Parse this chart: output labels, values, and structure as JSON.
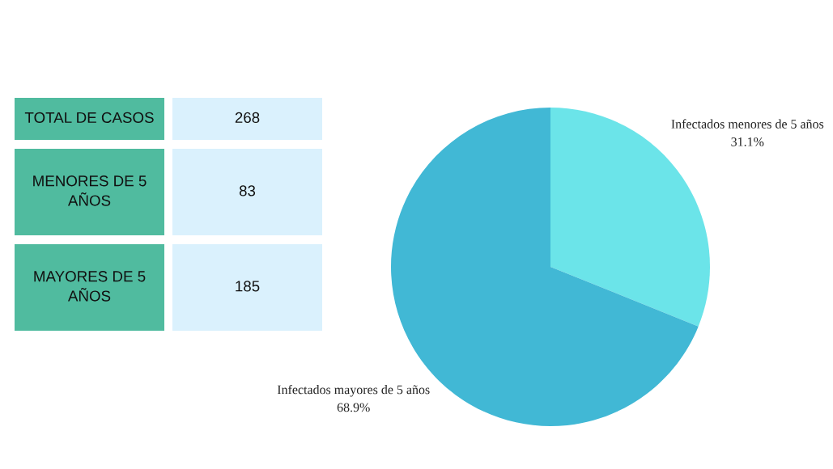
{
  "chart_data": [
    {
      "type": "other",
      "categories": [
        "TOTAL DE CASOS",
        "MENORES DE 5 AÑOS",
        "MAYORES DE 5 AÑOS"
      ],
      "values": [
        268,
        83,
        185
      ],
      "data_labels": true
    },
    {
      "type": "pie",
      "categories": [
        "Infectados menores de 5 años",
        "Infectados mayores de 5 años"
      ],
      "values": [
        31.1,
        68.9
      ],
      "colors": [
        "#6be4e9",
        "#41b8d5"
      ],
      "value_labels": [
        "31.1%",
        "68.9%"
      ]
    }
  ]
}
